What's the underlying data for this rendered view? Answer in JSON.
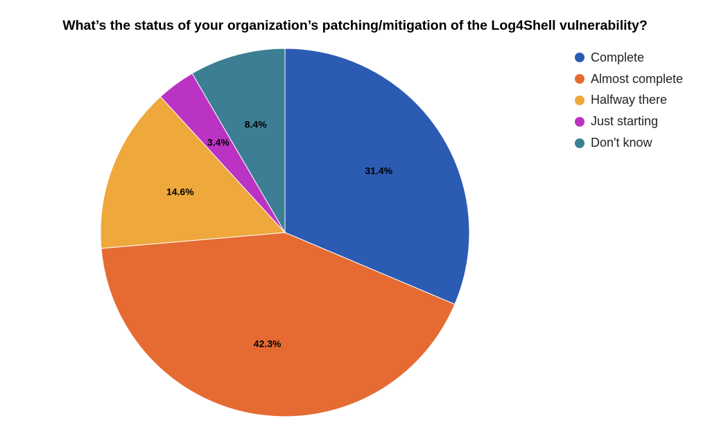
{
  "chart_data": {
    "type": "pie",
    "title": "What’s the status of your organization’s patching/mitigation of the Log4Shell vulnerability?",
    "categories": [
      "Complete",
      "Almost complete",
      "Halfway there",
      "Just starting",
      "Don't know"
    ],
    "values": [
      31.4,
      42.3,
      14.6,
      3.4,
      8.4
    ],
    "labels": [
      "31.4%",
      "42.3%",
      "14.6%",
      "3.4%",
      "8.4%"
    ],
    "colors": [
      "#2c5bb3",
      "#e56b33",
      "#eea83c",
      "#bb33c3",
      "#3c7f94"
    ],
    "legend_position": "right"
  }
}
